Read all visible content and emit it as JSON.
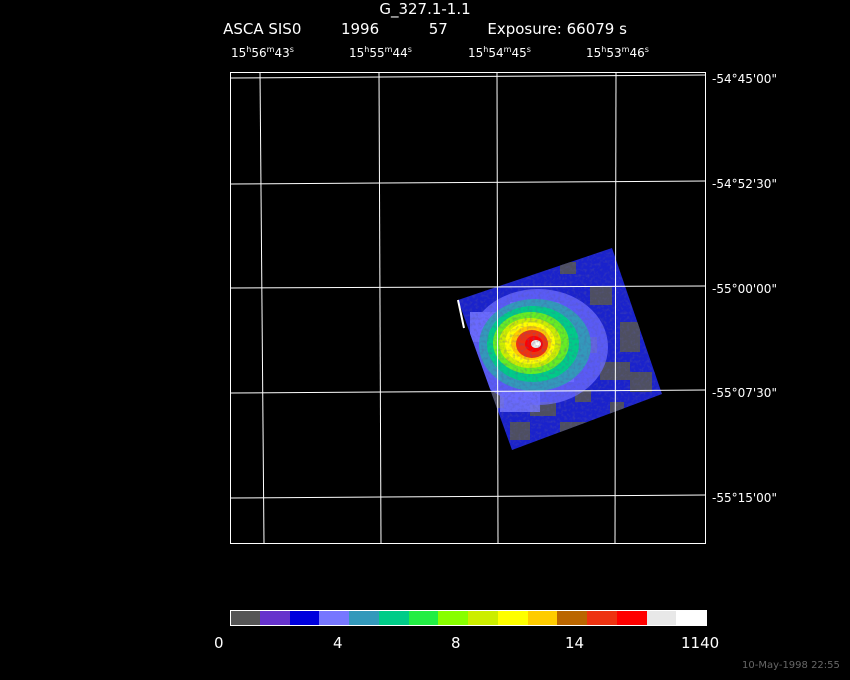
{
  "title_line1": "G_327.1-1.1",
  "title_line2": {
    "instrument": "ASCA SIS0",
    "year": "1996",
    "day": "57",
    "exposure": "Exposure: 66079 s"
  },
  "ra_labels": [
    {
      "h": "15",
      "m": "56",
      "s": "43"
    },
    {
      "h": "15",
      "m": "55",
      "s": "44"
    },
    {
      "h": "15",
      "m": "54",
      "s": "45"
    },
    {
      "h": "15",
      "m": "53",
      "s": "46"
    }
  ],
  "dec_labels": [
    "-54°45'00\"",
    "-54°52'30\"",
    "-55°00'00\"",
    "-55°07'30\"",
    "-55°15'00\""
  ],
  "colorbar": {
    "colors": [
      "#555555",
      "#6633cc",
      "#0000dd",
      "#7777ff",
      "#3399bb",
      "#00cc88",
      "#22ee44",
      "#88ff00",
      "#ccee00",
      "#ffff00",
      "#ffcc00",
      "#bb6600",
      "#ee3311",
      "#ff0000",
      "#e8e8e8",
      "#ffffff"
    ],
    "labels": [
      "0",
      "4",
      "8",
      "14",
      "1140"
    ]
  },
  "footer": "10-May-1998 22:55"
}
